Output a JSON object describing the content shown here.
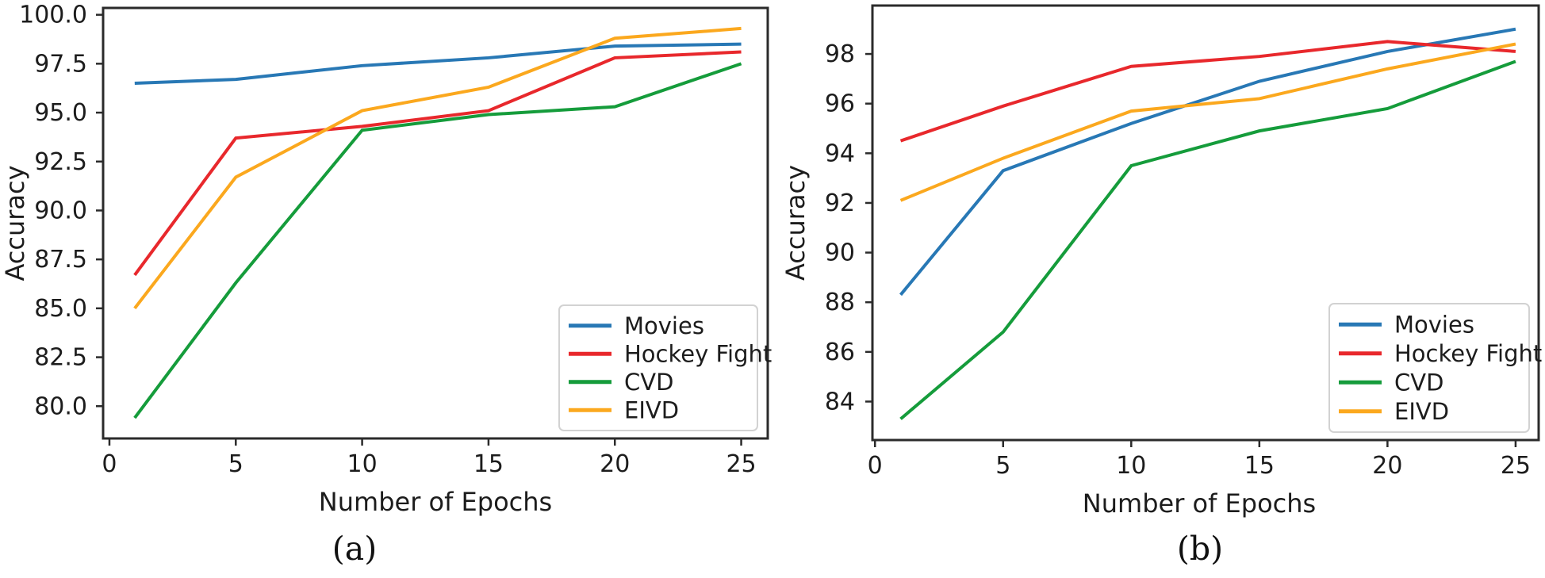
{
  "chart_data": [
    {
      "panel": "a",
      "caption": "(a)",
      "type": "line",
      "title": "",
      "xlabel": "Number of Epochs",
      "ylabel": "Accuracy",
      "grid": false,
      "x": [
        1,
        5,
        10,
        15,
        20,
        25
      ],
      "xlim": [
        -0.25,
        26.05
      ],
      "ylim": [
        78.35,
        100.35
      ],
      "xticks": {
        "values": [
          0,
          5,
          10,
          15,
          20,
          25
        ],
        "labels": [
          "0",
          "5",
          "10",
          "15",
          "20",
          "25"
        ]
      },
      "yticks": {
        "values": [
          100,
          97.5,
          95,
          92.5,
          90,
          87.5,
          85,
          82.5,
          80
        ],
        "labels": [
          "100.0",
          "97.5",
          "95.0",
          "92.5",
          "90.0",
          "87.5",
          "85.0",
          "82.5",
          "80.0"
        ]
      },
      "legend": {
        "position": "lower right",
        "entries": [
          "Movies",
          "Hockey Fight",
          "CVD",
          "EIVD"
        ]
      },
      "series": [
        {
          "name": "Movies",
          "color": "#2878b5",
          "values": [
            96.5,
            96.7,
            97.4,
            97.8,
            98.4,
            98.5
          ]
        },
        {
          "name": "Hockey Fight",
          "color": "#e8282c",
          "values": [
            86.7,
            93.7,
            94.3,
            95.1,
            97.8,
            98.1
          ]
        },
        {
          "name": "CVD",
          "color": "#159c3b",
          "values": [
            79.4,
            86.3,
            94.1,
            94.9,
            95.3,
            97.5
          ]
        },
        {
          "name": "EIVD",
          "color": "#fba81e",
          "values": [
            85.0,
            91.7,
            95.1,
            96.3,
            98.8,
            99.3
          ]
        }
      ]
    },
    {
      "panel": "b",
      "caption": "(b)",
      "type": "line",
      "title": "",
      "xlabel": "Number of Epochs",
      "ylabel": "Accuracy",
      "grid": false,
      "x": [
        1,
        5,
        10,
        15,
        20,
        25
      ],
      "xlim": [
        -0.1,
        25.9
      ],
      "ylim": [
        82.45,
        99.95
      ],
      "xticks": {
        "values": [
          0,
          5,
          10,
          15,
          20,
          25
        ],
        "labels": [
          "0",
          "5",
          "10",
          "15",
          "20",
          "25"
        ]
      },
      "yticks": {
        "values": [
          98,
          96,
          94,
          92,
          90,
          88,
          86,
          84
        ],
        "labels": [
          "98",
          "96",
          "94",
          "92",
          "90",
          "88",
          "86",
          "84"
        ]
      },
      "legend": {
        "position": "lower right",
        "entries": [
          "Movies",
          "Hockey Fight",
          "CVD",
          "EIVD"
        ]
      },
      "series": [
        {
          "name": "Movies",
          "color": "#2878b5",
          "values": [
            88.3,
            93.3,
            95.2,
            96.9,
            98.1,
            99.0
          ]
        },
        {
          "name": "Hockey Fight",
          "color": "#e8282c",
          "values": [
            94.5,
            95.9,
            97.5,
            97.9,
            98.5,
            98.1
          ]
        },
        {
          "name": "CVD",
          "color": "#159c3b",
          "values": [
            83.3,
            86.8,
            93.5,
            94.9,
            95.8,
            97.7
          ]
        },
        {
          "name": "EIVD",
          "color": "#fba81e",
          "values": [
            92.1,
            93.8,
            95.7,
            96.2,
            97.4,
            98.4
          ]
        }
      ]
    }
  ]
}
